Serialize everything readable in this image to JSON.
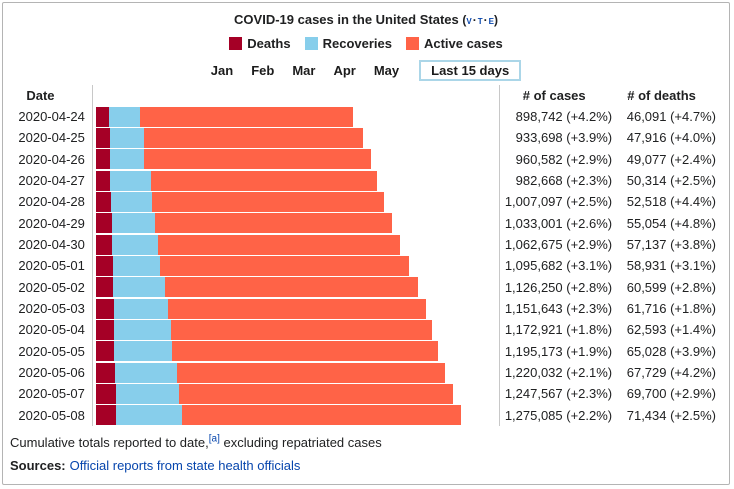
{
  "title": "COVID-19 cases in the United States",
  "vte": {
    "v": "v",
    "t": "t",
    "e": "e"
  },
  "legend": [
    {
      "label": "Deaths",
      "color": "#A50026"
    },
    {
      "label": "Recoveries",
      "color": "#87CEEB"
    },
    {
      "label": "Active cases",
      "color": "#FF6347"
    }
  ],
  "tabs": {
    "months": [
      "Jan",
      "Feb",
      "Mar",
      "Apr",
      "May"
    ],
    "selected": "Last 15 days",
    "selected_border_color": "#abd6e8"
  },
  "table": {
    "columns": {
      "date": "Date",
      "cases": "# of cases",
      "deaths": "# of deaths"
    },
    "rows": [
      {
        "date": "2020-04-24",
        "cases": 898742,
        "cases_text": "898,742 (+4.2%)",
        "deaths": 46091,
        "deaths_text": "46,091 (+4.7%)",
        "recoveries_est": 108000
      },
      {
        "date": "2020-04-25",
        "cases": 933698,
        "cases_text": "933,698 (+3.9%)",
        "deaths": 47916,
        "deaths_text": "47,916 (+4.0%)",
        "recoveries_est": 120000
      },
      {
        "date": "2020-04-26",
        "cases": 960582,
        "cases_text": "960,582 (+2.9%)",
        "deaths": 49077,
        "deaths_text": "49,077 (+2.4%)",
        "recoveries_est": 121000
      },
      {
        "date": "2020-04-27",
        "cases": 982668,
        "cases_text": "982,668 (+2.3%)",
        "deaths": 50314,
        "deaths_text": "50,314 (+2.5%)",
        "recoveries_est": 141000
      },
      {
        "date": "2020-04-28",
        "cases": 1007097,
        "cases_text": "1,007,097 (+2.5%)",
        "deaths": 52518,
        "deaths_text": "52,518 (+4.4%)",
        "recoveries_est": 145000
      },
      {
        "date": "2020-04-29",
        "cases": 1033001,
        "cases_text": "1,033,001 (+2.6%)",
        "deaths": 55054,
        "deaths_text": "55,054 (+4.8%)",
        "recoveries_est": 152000
      },
      {
        "date": "2020-04-30",
        "cases": 1062675,
        "cases_text": "1,062,675 (+2.9%)",
        "deaths": 57137,
        "deaths_text": "57,137 (+3.8%)",
        "recoveries_est": 161000
      },
      {
        "date": "2020-05-01",
        "cases": 1095682,
        "cases_text": "1,095,682 (+3.1%)",
        "deaths": 58931,
        "deaths_text": "58,931 (+3.1%)",
        "recoveries_est": 164000
      },
      {
        "date": "2020-05-02",
        "cases": 1126250,
        "cases_text": "1,126,250 (+2.8%)",
        "deaths": 60599,
        "deaths_text": "60,599 (+2.8%)",
        "recoveries_est": 180000
      },
      {
        "date": "2020-05-03",
        "cases": 1151643,
        "cases_text": "1,151,643 (+2.3%)",
        "deaths": 61716,
        "deaths_text": "61,716 (+1.8%)",
        "recoveries_est": 189000
      },
      {
        "date": "2020-05-04",
        "cases": 1172921,
        "cases_text": "1,172,921 (+1.8%)",
        "deaths": 62593,
        "deaths_text": "62,593 (+1.4%)",
        "recoveries_est": 199000
      },
      {
        "date": "2020-05-05",
        "cases": 1195173,
        "cases_text": "1,195,173 (+1.9%)",
        "deaths": 65028,
        "deaths_text": "65,028 (+3.9%)",
        "recoveries_est": 202000
      },
      {
        "date": "2020-05-06",
        "cases": 1220032,
        "cases_text": "1,220,032 (+2.1%)",
        "deaths": 67729,
        "deaths_text": "67,729 (+4.2%)",
        "recoveries_est": 215000
      },
      {
        "date": "2020-05-07",
        "cases": 1247567,
        "cases_text": "1,247,567 (+2.3%)",
        "deaths": 69700,
        "deaths_text": "69,700 (+2.9%)",
        "recoveries_est": 221000
      },
      {
        "date": "2020-05-08",
        "cases": 1275085,
        "cases_text": "1,275,085 (+2.2%)",
        "deaths": 71434,
        "deaths_text": "71,434 (+2.5%)",
        "recoveries_est": 228000
      }
    ]
  },
  "footer": {
    "note_pre": "Cumulative totals reported to date,",
    "note_ref": "[a]",
    "note_post": " excluding repatriated cases",
    "sources_label": "Sources:",
    "sources_link": "Official reports from state health officials"
  },
  "chart_data": {
    "type": "bar",
    "orientation": "horizontal",
    "stacked": true,
    "title": "COVID-19 cases in the United States",
    "legend_position": "top",
    "categories": [
      "2020-04-24",
      "2020-04-25",
      "2020-04-26",
      "2020-04-27",
      "2020-04-28",
      "2020-04-29",
      "2020-04-30",
      "2020-05-01",
      "2020-05-02",
      "2020-05-03",
      "2020-05-04",
      "2020-05-05",
      "2020-05-06",
      "2020-05-07",
      "2020-05-08"
    ],
    "series": [
      {
        "name": "Deaths",
        "color": "#A50026",
        "values": [
          46091,
          47916,
          49077,
          50314,
          52518,
          55054,
          57137,
          58931,
          60599,
          61716,
          62593,
          65028,
          67729,
          69700,
          71434
        ]
      },
      {
        "name": "Recoveries",
        "color": "#87CEEB",
        "estimated_from_bar_widths": true,
        "values": [
          108000,
          120000,
          121000,
          141000,
          145000,
          152000,
          161000,
          164000,
          180000,
          189000,
          199000,
          202000,
          215000,
          221000,
          228000
        ]
      },
      {
        "name": "Active cases",
        "color": "#FF6347",
        "estimated_from_bar_widths": true,
        "values": [
          744651,
          765782,
          790505,
          791354,
          809579,
          825947,
          844538,
          872751,
          885651,
          900927,
          911328,
          928145,
          937303,
          956867,
          975651
        ]
      }
    ],
    "totals_cases": [
      898742,
      933698,
      960582,
      982668,
      1007097,
      1033001,
      1062675,
      1095682,
      1126250,
      1151643,
      1172921,
      1195173,
      1220032,
      1247567,
      1275085
    ],
    "cases_daily_growth_pct": [
      4.2,
      3.9,
      2.9,
      2.3,
      2.5,
      2.6,
      2.9,
      3.1,
      2.8,
      2.3,
      1.8,
      1.9,
      2.1,
      2.3,
      2.2
    ],
    "deaths_daily_growth_pct": [
      4.7,
      4.0,
      2.4,
      2.5,
      4.4,
      4.8,
      3.8,
      3.1,
      2.8,
      1.8,
      1.4,
      3.9,
      4.2,
      2.9,
      2.5
    ],
    "bar_length_axis": "cumulative cases (bar length proportional to # of cases)"
  }
}
